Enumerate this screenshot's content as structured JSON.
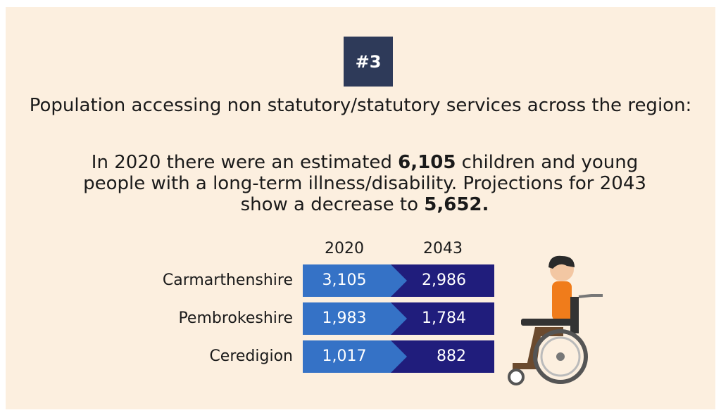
{
  "badge": "#3",
  "heading": "Population accessing non statutory/statutory services across the region:",
  "paragraph": [
    "In 2020 there were an estimated ",
    "6,105",
    " children and young people with a long-term illness/disability. Projections for 2043 show a decrease to ",
    "5,652."
  ],
  "table": {
    "columns": [
      "2020",
      "2043"
    ],
    "rows": [
      [
        "Carmarthenshire",
        "3,105",
        "2,986"
      ],
      [
        "Pembrokeshire",
        "1,983",
        "1,784"
      ],
      [
        "Ceredigion",
        "1,017",
        "882"
      ]
    ]
  }
}
